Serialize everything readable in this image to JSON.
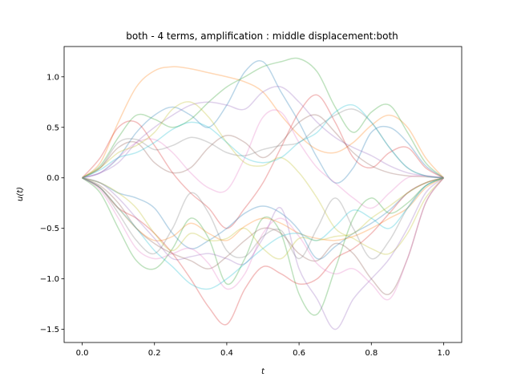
{
  "chart_data": {
    "type": "line",
    "title": "both - 4 terms, amplification : middle displacement:both",
    "xlabel": "t",
    "ylabel": "u(t)",
    "xlim": [
      -0.05,
      1.05
    ],
    "ylim": [
      -1.63,
      1.3
    ],
    "x_ticks": [
      0.0,
      0.2,
      0.4,
      0.6,
      0.8,
      1.0
    ],
    "x_tick_labels": [
      "0.0",
      "0.2",
      "0.4",
      "0.6",
      "0.8",
      "1.0"
    ],
    "y_ticks": [
      -1.5,
      -1.0,
      -0.5,
      0.0,
      0.5,
      1.0
    ],
    "y_tick_labels": [
      "−1.5",
      "−1.0",
      "−0.5",
      "0.0",
      "0.5",
      "1.0"
    ],
    "grid": false,
    "legend": "none",
    "palette": [
      "#1f77b4",
      "#ff7f0e",
      "#2ca02c",
      "#d62728",
      "#9467bd",
      "#8c564b",
      "#e377c2",
      "#7f7f7f",
      "#bcbd22",
      "#17becf"
    ],
    "x": [
      0,
      0.05,
      0.1,
      0.15,
      0.2,
      0.25,
      0.3,
      0.35,
      0.4,
      0.45,
      0.5,
      0.55,
      0.6,
      0.65,
      0.7,
      0.75,
      0.8,
      0.85,
      0.9,
      0.95,
      1.0
    ],
    "series": [
      {
        "values": [
          0,
          0.05,
          0.2,
          0.45,
          0.62,
          0.7,
          0.62,
          0.5,
          0.72,
          1.05,
          1.15,
          0.85,
          0.55,
          0.2,
          -0.05,
          0.1,
          0.45,
          0.5,
          0.35,
          0.12,
          0
        ]
      },
      {
        "values": [
          0,
          0.15,
          0.55,
          0.9,
          1.06,
          1.1,
          1.08,
          1.04,
          1.0,
          0.95,
          0.85,
          0.62,
          0.42,
          0.28,
          0.25,
          0.35,
          0.52,
          0.62,
          0.5,
          0.2,
          0
        ]
      },
      {
        "values": [
          0,
          0.12,
          0.4,
          0.62,
          0.58,
          0.5,
          0.58,
          0.75,
          0.9,
          1.0,
          1.1,
          1.15,
          1.18,
          1.05,
          0.7,
          0.45,
          0.65,
          0.72,
          0.45,
          0.15,
          0
        ]
      },
      {
        "values": [
          0,
          0.2,
          0.5,
          0.55,
          0.32,
          0.05,
          -0.15,
          -0.3,
          -0.5,
          -0.3,
          -0.05,
          0.3,
          0.65,
          0.82,
          0.55,
          0.2,
          0.1,
          0.25,
          0.3,
          0.1,
          0
        ]
      },
      {
        "values": [
          0,
          0.05,
          0.15,
          0.35,
          0.5,
          0.62,
          0.72,
          0.75,
          0.72,
          0.68,
          0.85,
          0.9,
          0.75,
          0.55,
          0.4,
          0.3,
          0.22,
          0.12,
          0.05,
          0.02,
          0
        ]
      },
      {
        "values": [
          0,
          0.1,
          0.3,
          0.35,
          0.15,
          0.05,
          0.1,
          0.3,
          0.42,
          0.35,
          0.2,
          0.35,
          0.55,
          0.62,
          0.45,
          0.25,
          0.12,
          0.05,
          0.02,
          0.01,
          0
        ]
      },
      {
        "values": [
          0,
          0.05,
          0.2,
          0.35,
          0.38,
          0.25,
          0.05,
          -0.1,
          -0.12,
          0.2,
          0.6,
          0.65,
          0.35,
          0.1,
          -0.05,
          -0.2,
          -0.3,
          -0.15,
          0.0,
          0.02,
          0
        ]
      },
      {
        "values": [
          0,
          0.1,
          0.35,
          0.38,
          0.28,
          0.32,
          0.4,
          0.35,
          0.25,
          0.22,
          0.28,
          0.32,
          0.35,
          0.5,
          0.62,
          0.68,
          0.55,
          0.3,
          0.1,
          0.02,
          0
        ]
      },
      {
        "values": [
          0,
          0.1,
          0.25,
          0.32,
          0.45,
          0.68,
          0.75,
          0.6,
          0.35,
          0.15,
          0.12,
          0.2,
          0.05,
          -0.2,
          -0.5,
          -0.6,
          -0.7,
          -0.75,
          -0.55,
          -0.2,
          0
        ]
      },
      {
        "values": [
          0,
          0.08,
          0.2,
          0.25,
          0.35,
          0.48,
          0.55,
          0.5,
          0.35,
          0.2,
          0.15,
          0.2,
          0.35,
          0.45,
          0.65,
          0.72,
          0.55,
          0.3,
          0.1,
          0.02,
          0
        ]
      },
      {
        "values": [
          0,
          -0.05,
          -0.15,
          -0.2,
          -0.3,
          -0.55,
          -0.7,
          -0.62,
          -0.5,
          -0.35,
          -0.28,
          -0.35,
          -0.52,
          -0.8,
          -0.68,
          -0.55,
          -0.45,
          -0.32,
          -0.15,
          -0.05,
          0
        ]
      },
      {
        "values": [
          0,
          -0.1,
          -0.3,
          -0.5,
          -0.62,
          -0.58,
          -0.45,
          -0.55,
          -0.62,
          -0.48,
          -0.4,
          -0.45,
          -0.55,
          -0.6,
          -0.62,
          -0.58,
          -0.5,
          -0.4,
          -0.3,
          -0.1,
          0
        ]
      },
      {
        "values": [
          0,
          -0.15,
          -0.5,
          -0.82,
          -0.9,
          -0.7,
          -0.4,
          -0.6,
          -1.05,
          -0.8,
          -0.4,
          -0.55,
          -1.15,
          -1.35,
          -0.9,
          -0.4,
          -0.2,
          -0.35,
          -0.25,
          -0.08,
          0
        ]
      },
      {
        "values": [
          0,
          -0.1,
          -0.3,
          -0.4,
          -0.55,
          -0.75,
          -1.0,
          -1.28,
          -1.45,
          -1.1,
          -0.88,
          -0.95,
          -1.05,
          -1.0,
          -0.8,
          -0.7,
          -0.55,
          -0.35,
          -0.15,
          -0.05,
          0
        ]
      },
      {
        "values": [
          0,
          -0.05,
          -0.2,
          -0.4,
          -0.6,
          -0.8,
          -0.78,
          -0.75,
          -0.8,
          -0.85,
          -0.6,
          -0.3,
          -0.9,
          -1.2,
          -1.5,
          -1.2,
          -1.0,
          -0.8,
          -0.5,
          -0.15,
          0
        ]
      },
      {
        "values": [
          0,
          -0.08,
          -0.25,
          -0.5,
          -0.65,
          -0.75,
          -0.82,
          -0.9,
          -0.78,
          -0.62,
          -0.5,
          -0.55,
          -0.75,
          -0.82,
          -0.65,
          -0.75,
          -1.0,
          -1.15,
          -0.8,
          -0.25,
          0
        ]
      },
      {
        "values": [
          0,
          -0.12,
          -0.4,
          -0.7,
          -0.8,
          -0.75,
          -0.7,
          -0.85,
          -1.1,
          -0.95,
          -0.55,
          -0.4,
          -0.58,
          -0.85,
          -0.95,
          -0.9,
          -1.05,
          -1.2,
          -0.8,
          -0.25,
          0
        ]
      },
      {
        "values": [
          0,
          -0.1,
          -0.35,
          -0.62,
          -0.75,
          -0.5,
          -0.15,
          -0.35,
          -0.72,
          -0.78,
          -0.58,
          -0.52,
          -0.8,
          -0.5,
          -0.2,
          -0.5,
          -0.8,
          -0.62,
          -0.3,
          -0.08,
          0
        ]
      },
      {
        "values": [
          0,
          -0.05,
          -0.15,
          -0.3,
          -0.55,
          -0.72,
          -0.55,
          -0.62,
          -0.6,
          -0.5,
          -0.7,
          -0.8,
          -0.6,
          -0.62,
          -0.58,
          -0.55,
          -0.4,
          -0.28,
          -0.15,
          -0.05,
          0
        ]
      },
      {
        "values": [
          0,
          -0.1,
          -0.3,
          -0.5,
          -0.72,
          -0.88,
          -1.05,
          -1.1,
          -1.0,
          -0.85,
          -0.7,
          -0.58,
          -0.55,
          -0.62,
          -0.48,
          -0.32,
          -0.4,
          -0.5,
          -0.3,
          -0.08,
          0
        ]
      }
    ]
  }
}
